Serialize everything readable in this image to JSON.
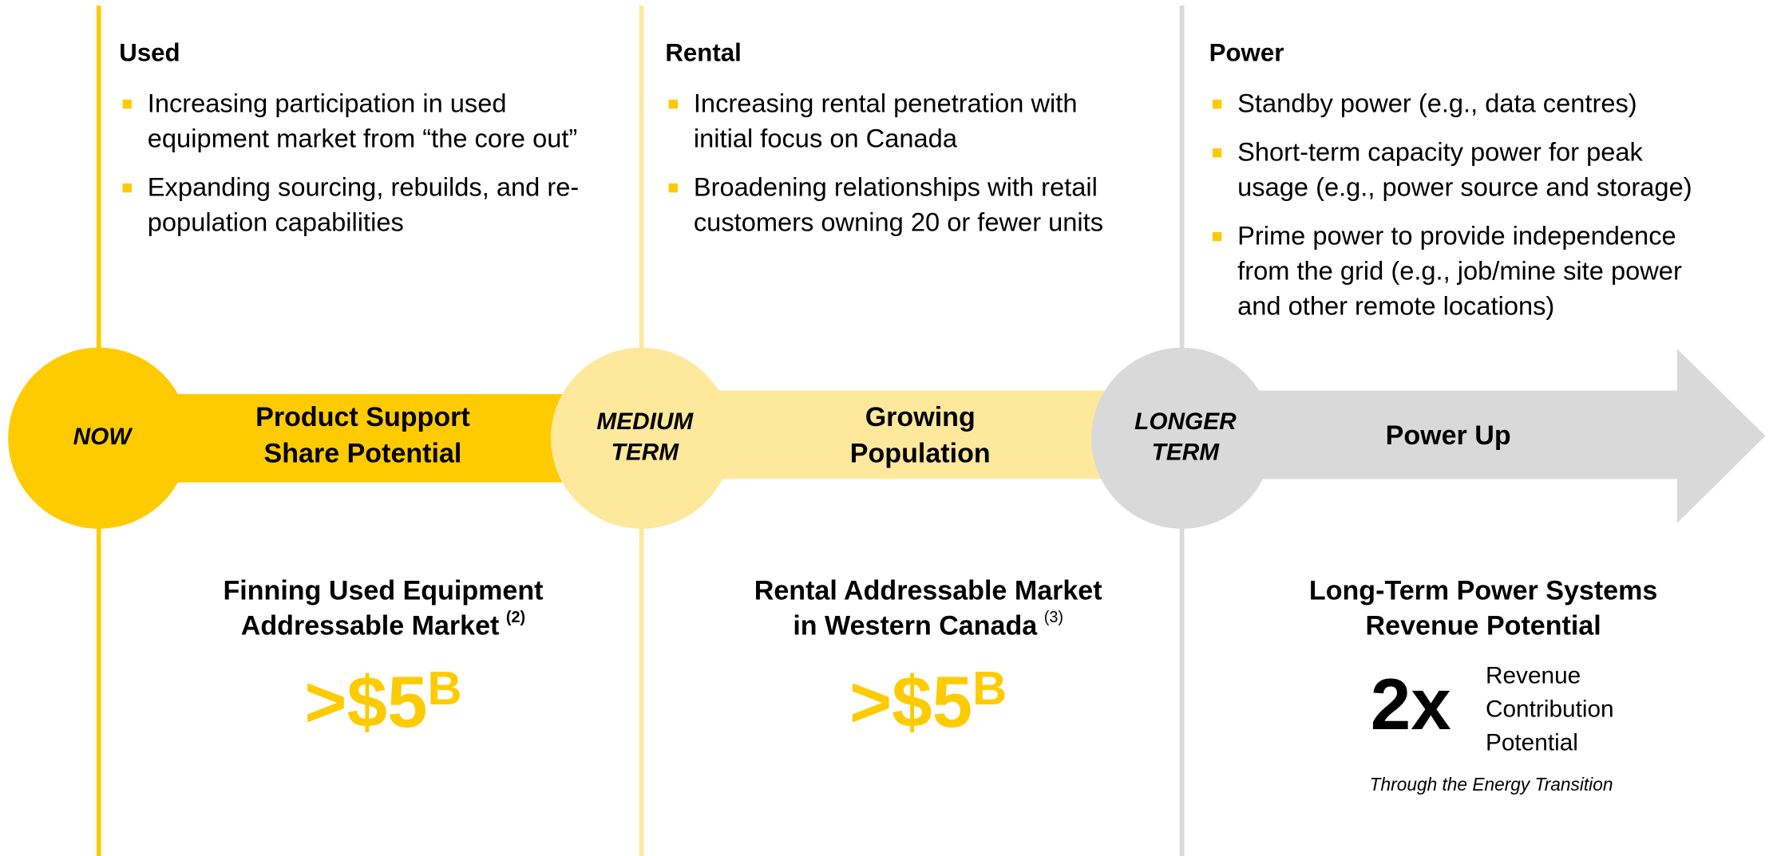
{
  "columns": [
    {
      "color": "#fecb00",
      "heading": "Used",
      "bullets": [
        [
          "Increasing participation in used",
          "equipment market from “the core out”"
        ],
        [
          "Expanding sourcing, rebuilds, and re-",
          "population capabilities"
        ]
      ],
      "stage": [
        "NOW"
      ],
      "arrow_label": [
        "Product Support",
        "Share Potential"
      ],
      "market": {
        "title": [
          "Finning Used Equipment",
          "Addressable Market"
        ],
        "note": "(2)",
        "value": ">$5",
        "unit": "B"
      }
    },
    {
      "color": "#fde89b",
      "heading": "Rental",
      "bullets": [
        [
          "Increasing rental penetration with",
          "initial focus on Canada"
        ],
        [
          "Broadening relationships with retail",
          "customers owning 20 or fewer units"
        ]
      ],
      "stage": [
        "MEDIUM",
        "TERM"
      ],
      "arrow_label": [
        "Growing",
        "Population"
      ],
      "market": {
        "title": [
          "Rental Addressable Market",
          "in Western Canada"
        ],
        "note": "(3)",
        "value": ">$5",
        "unit": "B"
      }
    },
    {
      "color": "#d9d9d9",
      "heading": "Power",
      "bullets": [
        [
          "Standby power (e.g., data centres)"
        ],
        [
          "Short-term capacity power for peak",
          "usage (e.g., power source and storage)"
        ],
        [
          "Prime power to provide independence",
          "from the grid (e.g., job/mine site power",
          "and other remote locations)"
        ]
      ],
      "stage": [
        "LONGER",
        "TERM"
      ],
      "arrow_label": [
        "Power Up"
      ],
      "market": {
        "title": [
          "Long-Term Power Systems",
          "Revenue Potential"
        ],
        "value": "2x",
        "side": [
          "Revenue",
          "Contribution",
          "Potential"
        ],
        "caption": "Through the Energy Transition"
      }
    }
  ]
}
